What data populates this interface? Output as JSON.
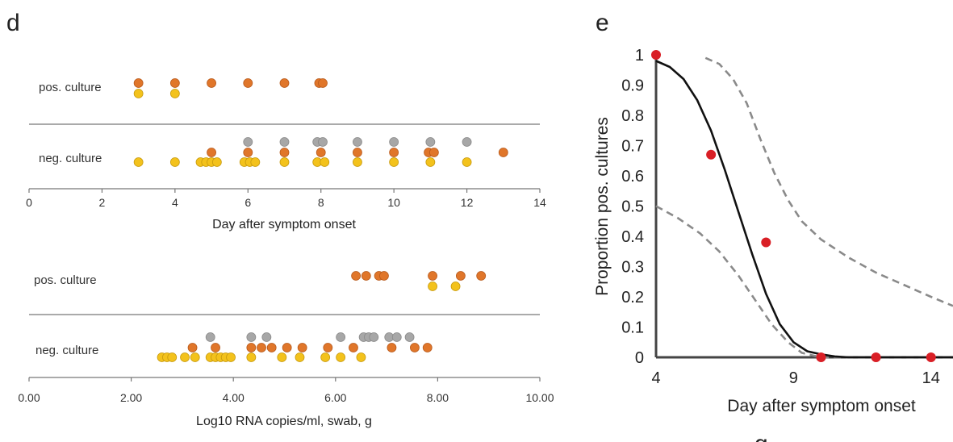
{
  "panel_letters": {
    "d": "d",
    "e": "e",
    "partial": "g"
  },
  "colors": {
    "orange": "#e0762a",
    "yellow": "#f3c21c",
    "gray": "#a7a7a7",
    "red": "#d91f26",
    "fit": "#111111",
    "ci": "#8a8a8a",
    "axis": "#444444"
  },
  "chart_data": [
    {
      "type": "scatter",
      "panel": "d-top",
      "xlabel": "Day after symptom onset",
      "xlim": [
        0,
        14
      ],
      "xticks": [
        "0",
        "2",
        "4",
        "6",
        "8",
        "10",
        "12",
        "14"
      ],
      "row_labels": [
        "pos. culture",
        "neg. culture"
      ],
      "series": [
        {
          "row": "pos. culture",
          "color": "orange",
          "x": [
            3,
            4,
            5,
            6,
            7,
            7.95,
            8.05
          ]
        },
        {
          "row": "pos. culture",
          "color": "yellow",
          "x": [
            3,
            4
          ]
        },
        {
          "row": "neg. culture",
          "color": "gray",
          "x": [
            6,
            7,
            7.9,
            8.05,
            9,
            10,
            11,
            12
          ]
        },
        {
          "row": "neg. culture",
          "color": "orange",
          "x": [
            5,
            6,
            7,
            8,
            9,
            10,
            10.95,
            11.1,
            13
          ]
        },
        {
          "row": "neg. culture",
          "color": "yellow",
          "x": [
            3,
            4,
            4.7,
            4.85,
            5,
            5.15,
            5.9,
            6.05,
            6.2,
            7,
            7.9,
            8.1,
            9,
            10,
            11,
            12
          ]
        }
      ]
    },
    {
      "type": "scatter",
      "panel": "d-bottom",
      "xlabel": "Log10 RNA copies/ml, swab, g",
      "xlim": [
        0,
        10
      ],
      "xticks": [
        "0.00",
        "2.00",
        "4.00",
        "6.00",
        "8.00",
        "10.00"
      ],
      "row_labels": [
        "pos. culture",
        "neg. culture"
      ],
      "series": [
        {
          "row": "pos. culture",
          "color": "orange",
          "x": [
            6.4,
            6.6,
            6.85,
            6.95,
            7.9,
            8.45,
            8.85
          ]
        },
        {
          "row": "pos. culture",
          "color": "yellow",
          "x": [
            7.9,
            8.35
          ]
        },
        {
          "row": "neg. culture",
          "color": "gray",
          "x": [
            3.55,
            4.35,
            4.65,
            6.1,
            6.55,
            6.65,
            6.75,
            7.05,
            7.2,
            7.45
          ]
        },
        {
          "row": "neg. culture",
          "color": "orange",
          "x": [
            3.2,
            3.65,
            4.35,
            4.55,
            4.75,
            5.05,
            5.35,
            5.85,
            6.35,
            7.1,
            7.55,
            7.8
          ]
        },
        {
          "row": "neg. culture",
          "color": "yellow",
          "x": [
            2.6,
            2.7,
            2.8,
            3.05,
            3.25,
            3.55,
            3.65,
            3.75,
            3.85,
            3.95,
            4.35,
            4.95,
            5.3,
            5.8,
            6.1,
            6.5
          ]
        }
      ]
    },
    {
      "type": "line",
      "panel": "e",
      "xlabel": "Day after symptom onset",
      "ylabel": "Proportion pos. cultures",
      "xlim": [
        4,
        14.8
      ],
      "ylim": [
        0,
        1
      ],
      "xticks": [
        "4",
        "9",
        "14"
      ],
      "yticks": [
        "0",
        "0.1",
        "0.2",
        "0.3",
        "0.4",
        "0.5",
        "0.6",
        "0.7",
        "0.8",
        "0.9",
        "1"
      ],
      "points": {
        "x": [
          4,
          6,
          8,
          10,
          12,
          14
        ],
        "y": [
          1,
          0.67,
          0.38,
          0,
          0,
          0
        ]
      },
      "fit": {
        "x": [
          4,
          4.5,
          5,
          5.5,
          6,
          6.5,
          7,
          7.5,
          8,
          8.5,
          9,
          9.5,
          10,
          10.5,
          11,
          12,
          13,
          14,
          14.8
        ],
        "y": [
          0.98,
          0.96,
          0.92,
          0.85,
          0.75,
          0.62,
          0.48,
          0.34,
          0.21,
          0.11,
          0.05,
          0.02,
          0.01,
          0.003,
          0,
          0,
          0,
          0,
          0
        ]
      },
      "ci_upper": {
        "x": [
          5.8,
          6.3,
          6.8,
          7.3,
          7.8,
          8.3,
          8.8,
          9.3,
          10,
          11,
          12,
          13,
          14,
          14.8
        ],
        "y": [
          0.99,
          0.97,
          0.92,
          0.84,
          0.72,
          0.61,
          0.52,
          0.45,
          0.39,
          0.33,
          0.28,
          0.24,
          0.2,
          0.17
        ]
      },
      "ci_lower": {
        "x": [
          4,
          4.8,
          5.6,
          6.3,
          7,
          7.6,
          8.2,
          8.8,
          9.3,
          10,
          11,
          12,
          13,
          14,
          14.8
        ],
        "y": [
          0.5,
          0.46,
          0.41,
          0.35,
          0.27,
          0.19,
          0.11,
          0.05,
          0.015,
          0,
          0,
          0,
          0,
          0,
          0
        ]
      }
    }
  ]
}
